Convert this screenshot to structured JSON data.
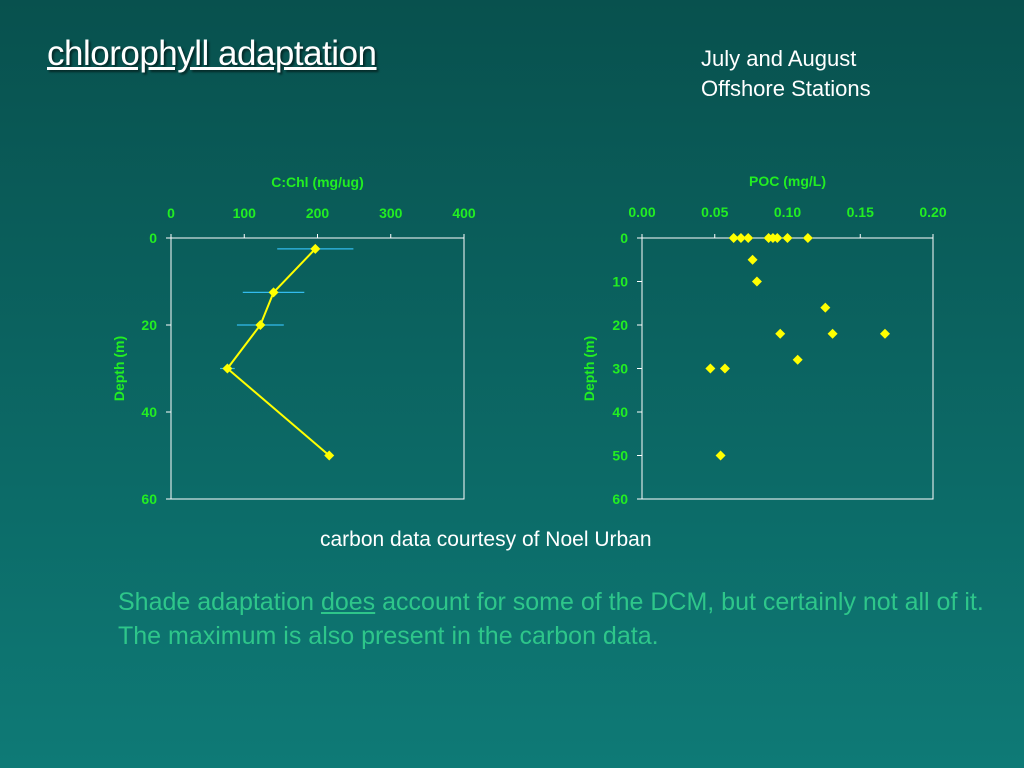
{
  "slide": {
    "title": "chlorophyll adaptation",
    "subtitle_line1": "July and August",
    "subtitle_line2": "Offshore Stations",
    "credit": "carbon data courtesy of Noel Urban",
    "body_part1": "Shade adaptation ",
    "body_emph": "does",
    "body_part2": " account for some of the DCM, but certainly not all of it.  The maximum is also present in the carbon data."
  },
  "colors": {
    "marker": "#ffff00",
    "line": "#ffff00",
    "error_bar": "#33bbee",
    "axis": "#ffffff",
    "axis_text": "#22ee22"
  },
  "chart_data": [
    {
      "type": "line",
      "xlabel": "C:Chl (mg/ug)",
      "ylabel": "Depth (m)",
      "xlim": [
        0,
        400
      ],
      "ylim": [
        0,
        60
      ],
      "y_inverted": true,
      "x_axis_position": "top",
      "x_ticks": [
        "0",
        "100",
        "200",
        "300",
        "400"
      ],
      "y_ticks": [
        "0",
        "20",
        "40",
        "60"
      ],
      "grid": false,
      "points": [
        {
          "x": 197,
          "y": 2.5,
          "err": 52
        },
        {
          "x": 140,
          "y": 12.5,
          "err": 42
        },
        {
          "x": 122,
          "y": 20,
          "err": 32
        },
        {
          "x": 77,
          "y": 30,
          "err": 10
        },
        {
          "x": 216,
          "y": 50,
          "err": 0
        }
      ]
    },
    {
      "type": "scatter",
      "xlabel": "POC (mg/L)",
      "ylabel": "Depth (m)",
      "xlim": [
        0,
        0.2
      ],
      "ylim": [
        0,
        60
      ],
      "y_inverted": true,
      "x_axis_position": "top",
      "x_ticks": [
        "0.00",
        "0.05",
        "0.10",
        "0.15",
        "0.20"
      ],
      "y_ticks": [
        "0",
        "10",
        "20",
        "30",
        "40",
        "50",
        "60"
      ],
      "grid": false,
      "points": [
        {
          "x": 0.063,
          "y": 0
        },
        {
          "x": 0.068,
          "y": 0
        },
        {
          "x": 0.073,
          "y": 0
        },
        {
          "x": 0.087,
          "y": 0
        },
        {
          "x": 0.09,
          "y": 0
        },
        {
          "x": 0.093,
          "y": 0
        },
        {
          "x": 0.1,
          "y": 0
        },
        {
          "x": 0.114,
          "y": 0
        },
        {
          "x": 0.076,
          "y": 5
        },
        {
          "x": 0.079,
          "y": 10
        },
        {
          "x": 0.126,
          "y": 16
        },
        {
          "x": 0.095,
          "y": 22
        },
        {
          "x": 0.131,
          "y": 22
        },
        {
          "x": 0.167,
          "y": 22
        },
        {
          "x": 0.107,
          "y": 28
        },
        {
          "x": 0.047,
          "y": 30
        },
        {
          "x": 0.057,
          "y": 30
        },
        {
          "x": 0.054,
          "y": 50
        }
      ]
    }
  ]
}
